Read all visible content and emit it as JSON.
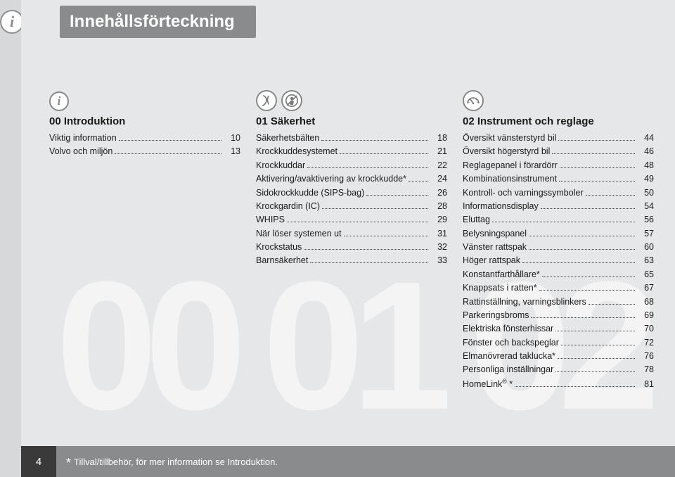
{
  "header": {
    "title": "Innehållsförteckning"
  },
  "background_numbers": [
    "00",
    "01",
    "02"
  ],
  "colors": {
    "page_bg": "#e6e7e8",
    "outer_bg": "#d7d8d9",
    "bar_bg": "#8a8b8c",
    "footer_dark": "#3a3a3a",
    "bg_number": "rgba(255,255,255,0.55)",
    "text": "#1a1a1a"
  },
  "sections": [
    {
      "heading": "00 Introduktion",
      "icon_set": "info",
      "items": [
        {
          "label": "Viktig information",
          "page": "10"
        },
        {
          "label": "Volvo och miljön",
          "page": "13"
        }
      ]
    },
    {
      "heading": "01 Säkerhet",
      "icon_set": "seatbelt",
      "items": [
        {
          "label": "Säkerhetsbälten",
          "page": "18"
        },
        {
          "label": "Krockkuddesystemet",
          "page": "21"
        },
        {
          "label": "Krockkuddar",
          "page": "22"
        },
        {
          "label": "Aktivering/avaktivering av krockkudde*",
          "page": "24"
        },
        {
          "label": "Sidokrockkudde (SIPS-bag)",
          "page": "26"
        },
        {
          "label": "Krockgardin (IC)",
          "page": "28"
        },
        {
          "label": "WHIPS",
          "page": "29"
        },
        {
          "label": "När löser systemen ut",
          "page": "31"
        },
        {
          "label": "Krockstatus",
          "page": "32"
        },
        {
          "label": "Barnsäkerhet",
          "page": "33"
        }
      ]
    },
    {
      "heading": "02 Instrument och reglage",
      "icon_set": "gauge",
      "items": [
        {
          "label": "Översikt vänsterstyrd bil",
          "page": "44"
        },
        {
          "label": "Översikt högerstyrd bil",
          "page": "46"
        },
        {
          "label": "Reglagepanel i förardörr",
          "page": "48"
        },
        {
          "label": "Kombinationsinstrument",
          "page": "49"
        },
        {
          "label": "Kontroll- och varningssymboler",
          "page": "50"
        },
        {
          "label": "Informationsdisplay",
          "page": "54"
        },
        {
          "label": "Eluttag",
          "page": "56"
        },
        {
          "label": "Belysningspanel",
          "page": "57"
        },
        {
          "label": "Vänster rattspak",
          "page": "60"
        },
        {
          "label": "Höger rattspak",
          "page": "63"
        },
        {
          "label": "Konstantfarthållare*",
          "page": "65"
        },
        {
          "label": "Knappsats i ratten*",
          "page": "67"
        },
        {
          "label": "Rattinställning, varningsblinkers",
          "page": "68"
        },
        {
          "label": "Parkeringsbroms",
          "page": "69"
        },
        {
          "label": "Elektriska fönsterhissar",
          "page": "70"
        },
        {
          "label": "Fönster och backspeglar",
          "page": "72"
        },
        {
          "label": "Elmanövrerad taklucka*",
          "page": "76"
        },
        {
          "label": "Personliga inställningar",
          "page": "78"
        },
        {
          "label_html": "HomeLink<sup>®</sup> *",
          "page": "81"
        }
      ]
    }
  ],
  "footer": {
    "page_number": "4",
    "footnote": "Tillval/tillbehör, för mer information se Introduktion."
  }
}
